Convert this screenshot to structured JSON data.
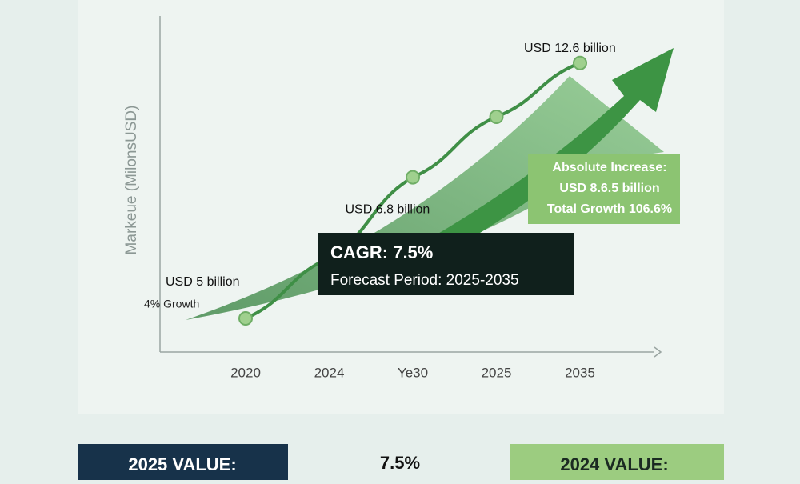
{
  "chart_data": {
    "type": "line",
    "ylabel": "Markeue (MilonsUSD)",
    "categories": [
      "2020",
      "2024",
      "Ye30",
      "2025",
      "2035"
    ],
    "series": [
      {
        "color": "#3f8f46",
        "values": [
          5,
          6.8,
          9.2,
          11,
          12.6
        ],
        "value_labels": [
          "USD 5 billion",
          "USD 6.8 billion",
          null,
          null,
          "USD 12.6 billion"
        ]
      }
    ],
    "ylim": [
      4,
      14
    ],
    "annotations": {
      "growth": "4% Growth",
      "increase": [
        "Absolute Increase:",
        "USD 8.6.5 billion",
        "Total Growth 106.6%"
      ],
      "cagr": "CAGR: 7.5%",
      "forecast": "Forecast Period: 2025-2035"
    },
    "cards": {
      "left": "2025 VALUE:",
      "middle": "7.5%",
      "right": "2024 VALUE:"
    }
  }
}
